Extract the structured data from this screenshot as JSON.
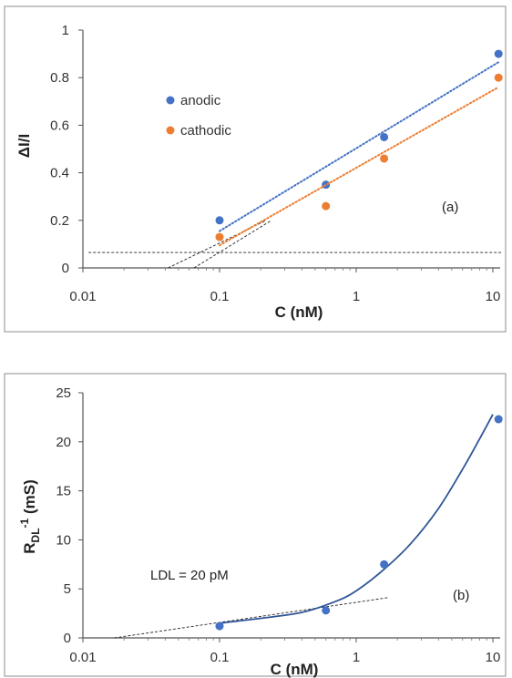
{
  "chart_data": [
    {
      "type": "scatter",
      "title": "",
      "xlabel": "C (nM)",
      "ylabel": "ΔI/I",
      "xscale": "log",
      "xlim": [
        0.01,
        10
      ],
      "ylim": [
        0,
        1
      ],
      "xticks": [
        "0.01",
        "0.1",
        "1",
        "10"
      ],
      "yticks": [
        "0",
        "0.2",
        "0.4",
        "0.6",
        "0.8",
        "1"
      ],
      "grid": false,
      "legend_position": "top-left",
      "annotation": "(a)",
      "series": [
        {
          "name": "anodic",
          "color": "#4472C4",
          "x": [
            0.1,
            0.6,
            1.6,
            11
          ],
          "y": [
            0.2,
            0.35,
            0.55,
            0.9
          ],
          "trendline": {
            "type": "log-linear",
            "x": [
              0.1,
              11
            ],
            "y": [
              0.155,
              0.865
            ],
            "style": "dotted"
          }
        },
        {
          "name": "cathodic",
          "color": "#ED7D31",
          "x": [
            0.1,
            0.6,
            1.6,
            11
          ],
          "y": [
            0.13,
            0.26,
            0.46,
            0.8
          ],
          "trendline": {
            "type": "log-linear",
            "x": [
              0.1,
              11
            ],
            "y": [
              0.095,
              0.76
            ],
            "style": "dotted"
          }
        }
      ],
      "reference_lines": [
        {
          "x": [
            0.011,
            11.5
          ],
          "y": [
            0.065,
            0.065
          ],
          "color": "#222222",
          "style": "dashed"
        },
        {
          "x": [
            0.042,
            0.22
          ],
          "y": [
            0.0,
            0.2
          ],
          "color": "#222222",
          "style": "dashed"
        },
        {
          "x": [
            0.065,
            0.24
          ],
          "y": [
            0.0,
            0.2
          ],
          "color": "#222222",
          "style": "dashed"
        }
      ]
    },
    {
      "type": "scatter",
      "title": "",
      "xlabel": "C (nM)",
      "ylabel": "RDL-1 (mS)",
      "ylabel_parts": {
        "base": "R",
        "sub": "DL",
        "sup": "-1",
        "unit": " (mS)"
      },
      "xscale": "log",
      "xlim": [
        0.01,
        10
      ],
      "ylim": [
        0,
        25
      ],
      "xticks": [
        "0.01",
        "0.1",
        "1",
        "10"
      ],
      "yticks": [
        "0",
        "5",
        "10",
        "15",
        "20",
        "25"
      ],
      "grid": false,
      "annotation": "(b)",
      "text_annotation": "LDL = 20 pM",
      "series": [
        {
          "name": "",
          "color": "#4472C4",
          "x": [
            0.1,
            0.6,
            1.6,
            11
          ],
          "y": [
            1.2,
            2.8,
            7.5,
            22.3
          ],
          "fit_curve": {
            "color": "#2F5597",
            "x": [
              0.1,
              0.2,
              0.4,
              0.7,
              1.0,
              1.6,
              2.5,
              4.0,
              6.0,
              8.0,
              10.0
            ],
            "y": [
              1.5,
              2.0,
              2.6,
              3.7,
              4.8,
              7.0,
              9.6,
              13.2,
              17.2,
              20.3,
              22.8
            ]
          }
        }
      ],
      "reference_lines": [
        {
          "x": [
            0.017,
            1.7
          ],
          "y": [
            0.0,
            4.1
          ],
          "color": "#222222",
          "style": "dashed"
        }
      ]
    }
  ]
}
